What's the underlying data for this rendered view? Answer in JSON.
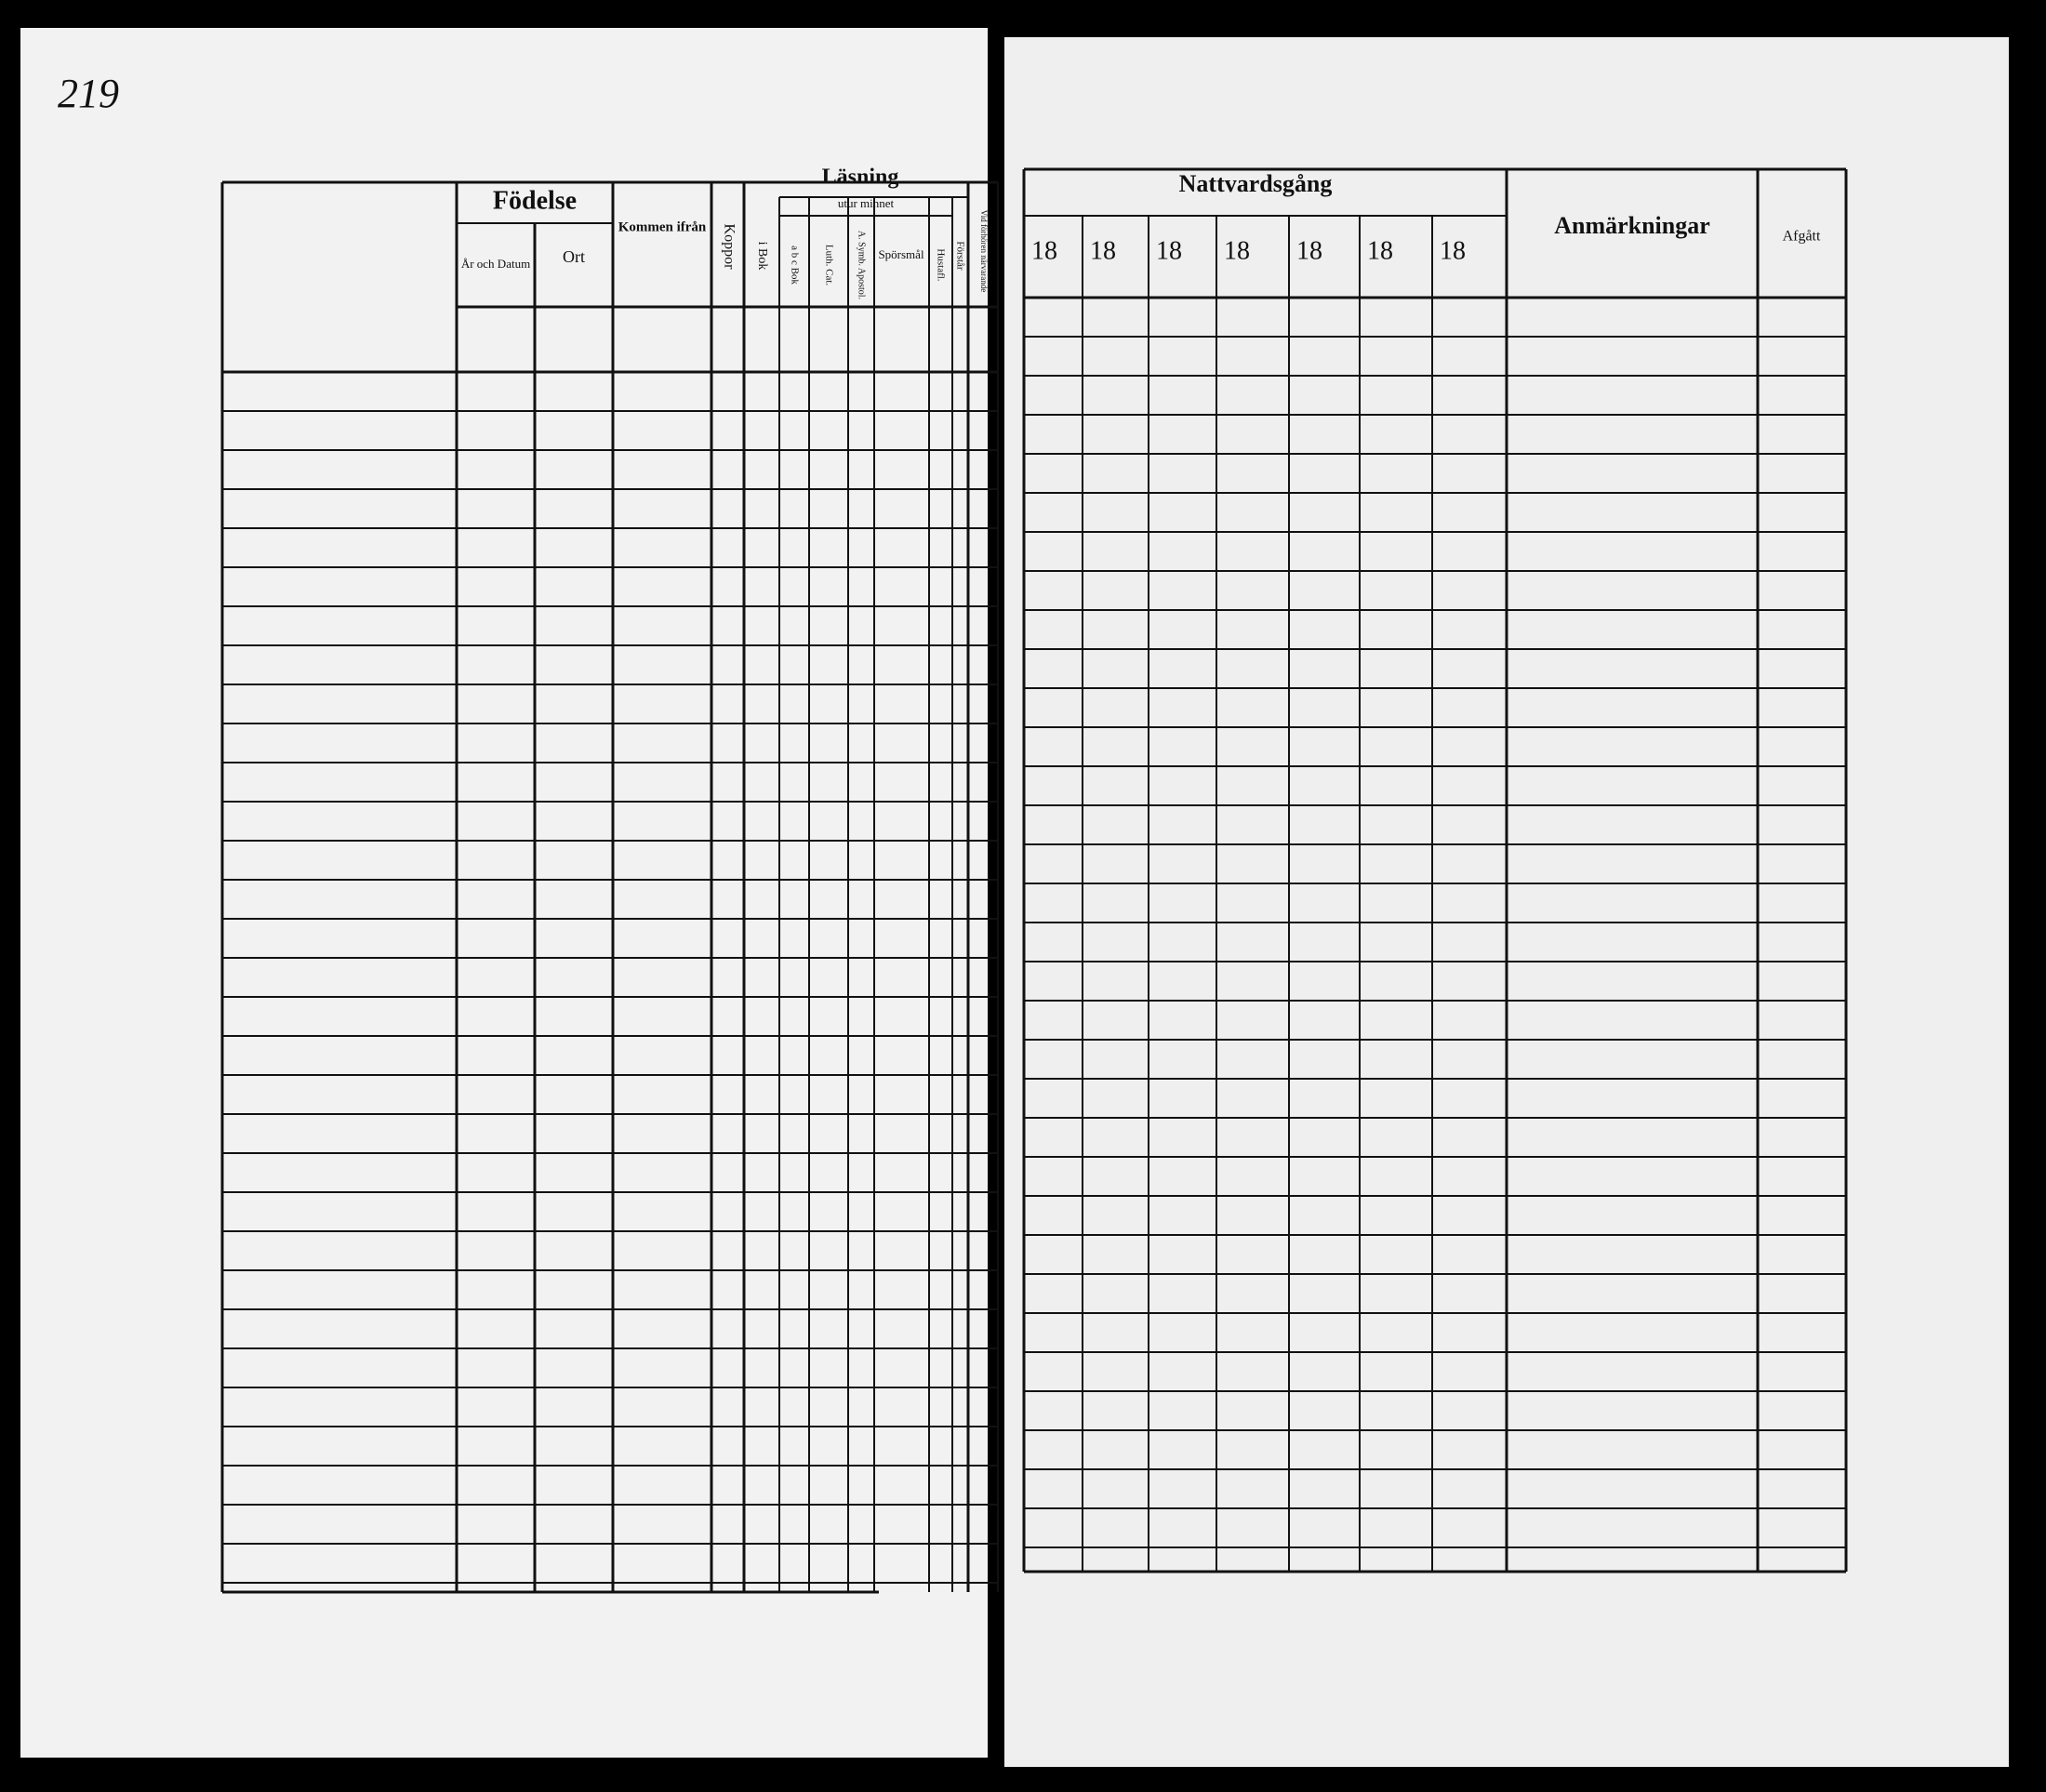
{
  "page_number": "219",
  "left_page": {
    "fodelse": {
      "title": "Födelse",
      "columns": [
        "År och Datum",
        "Ort"
      ]
    },
    "kommen": "Kommen ifrån",
    "koppor": "Koppor",
    "lasning": {
      "title": "Läsning",
      "subtitle": "utur minnet",
      "columns": [
        "i Bok",
        "a b c Bok",
        "Luth. Cat.",
        "A. Symb. Apostol.",
        "Spörsmål",
        "Hustafl.",
        "Förstår"
      ]
    },
    "vid_forhor": "Vid förhören närvarande"
  },
  "right_page": {
    "nattvardsgang": {
      "title": "Nattvardsgång",
      "years": [
        "18",
        "18",
        "18",
        "18",
        "18",
        "18",
        "18"
      ]
    },
    "anmarkningar": "Anmärkningar",
    "afgatt": "Afgått"
  }
}
